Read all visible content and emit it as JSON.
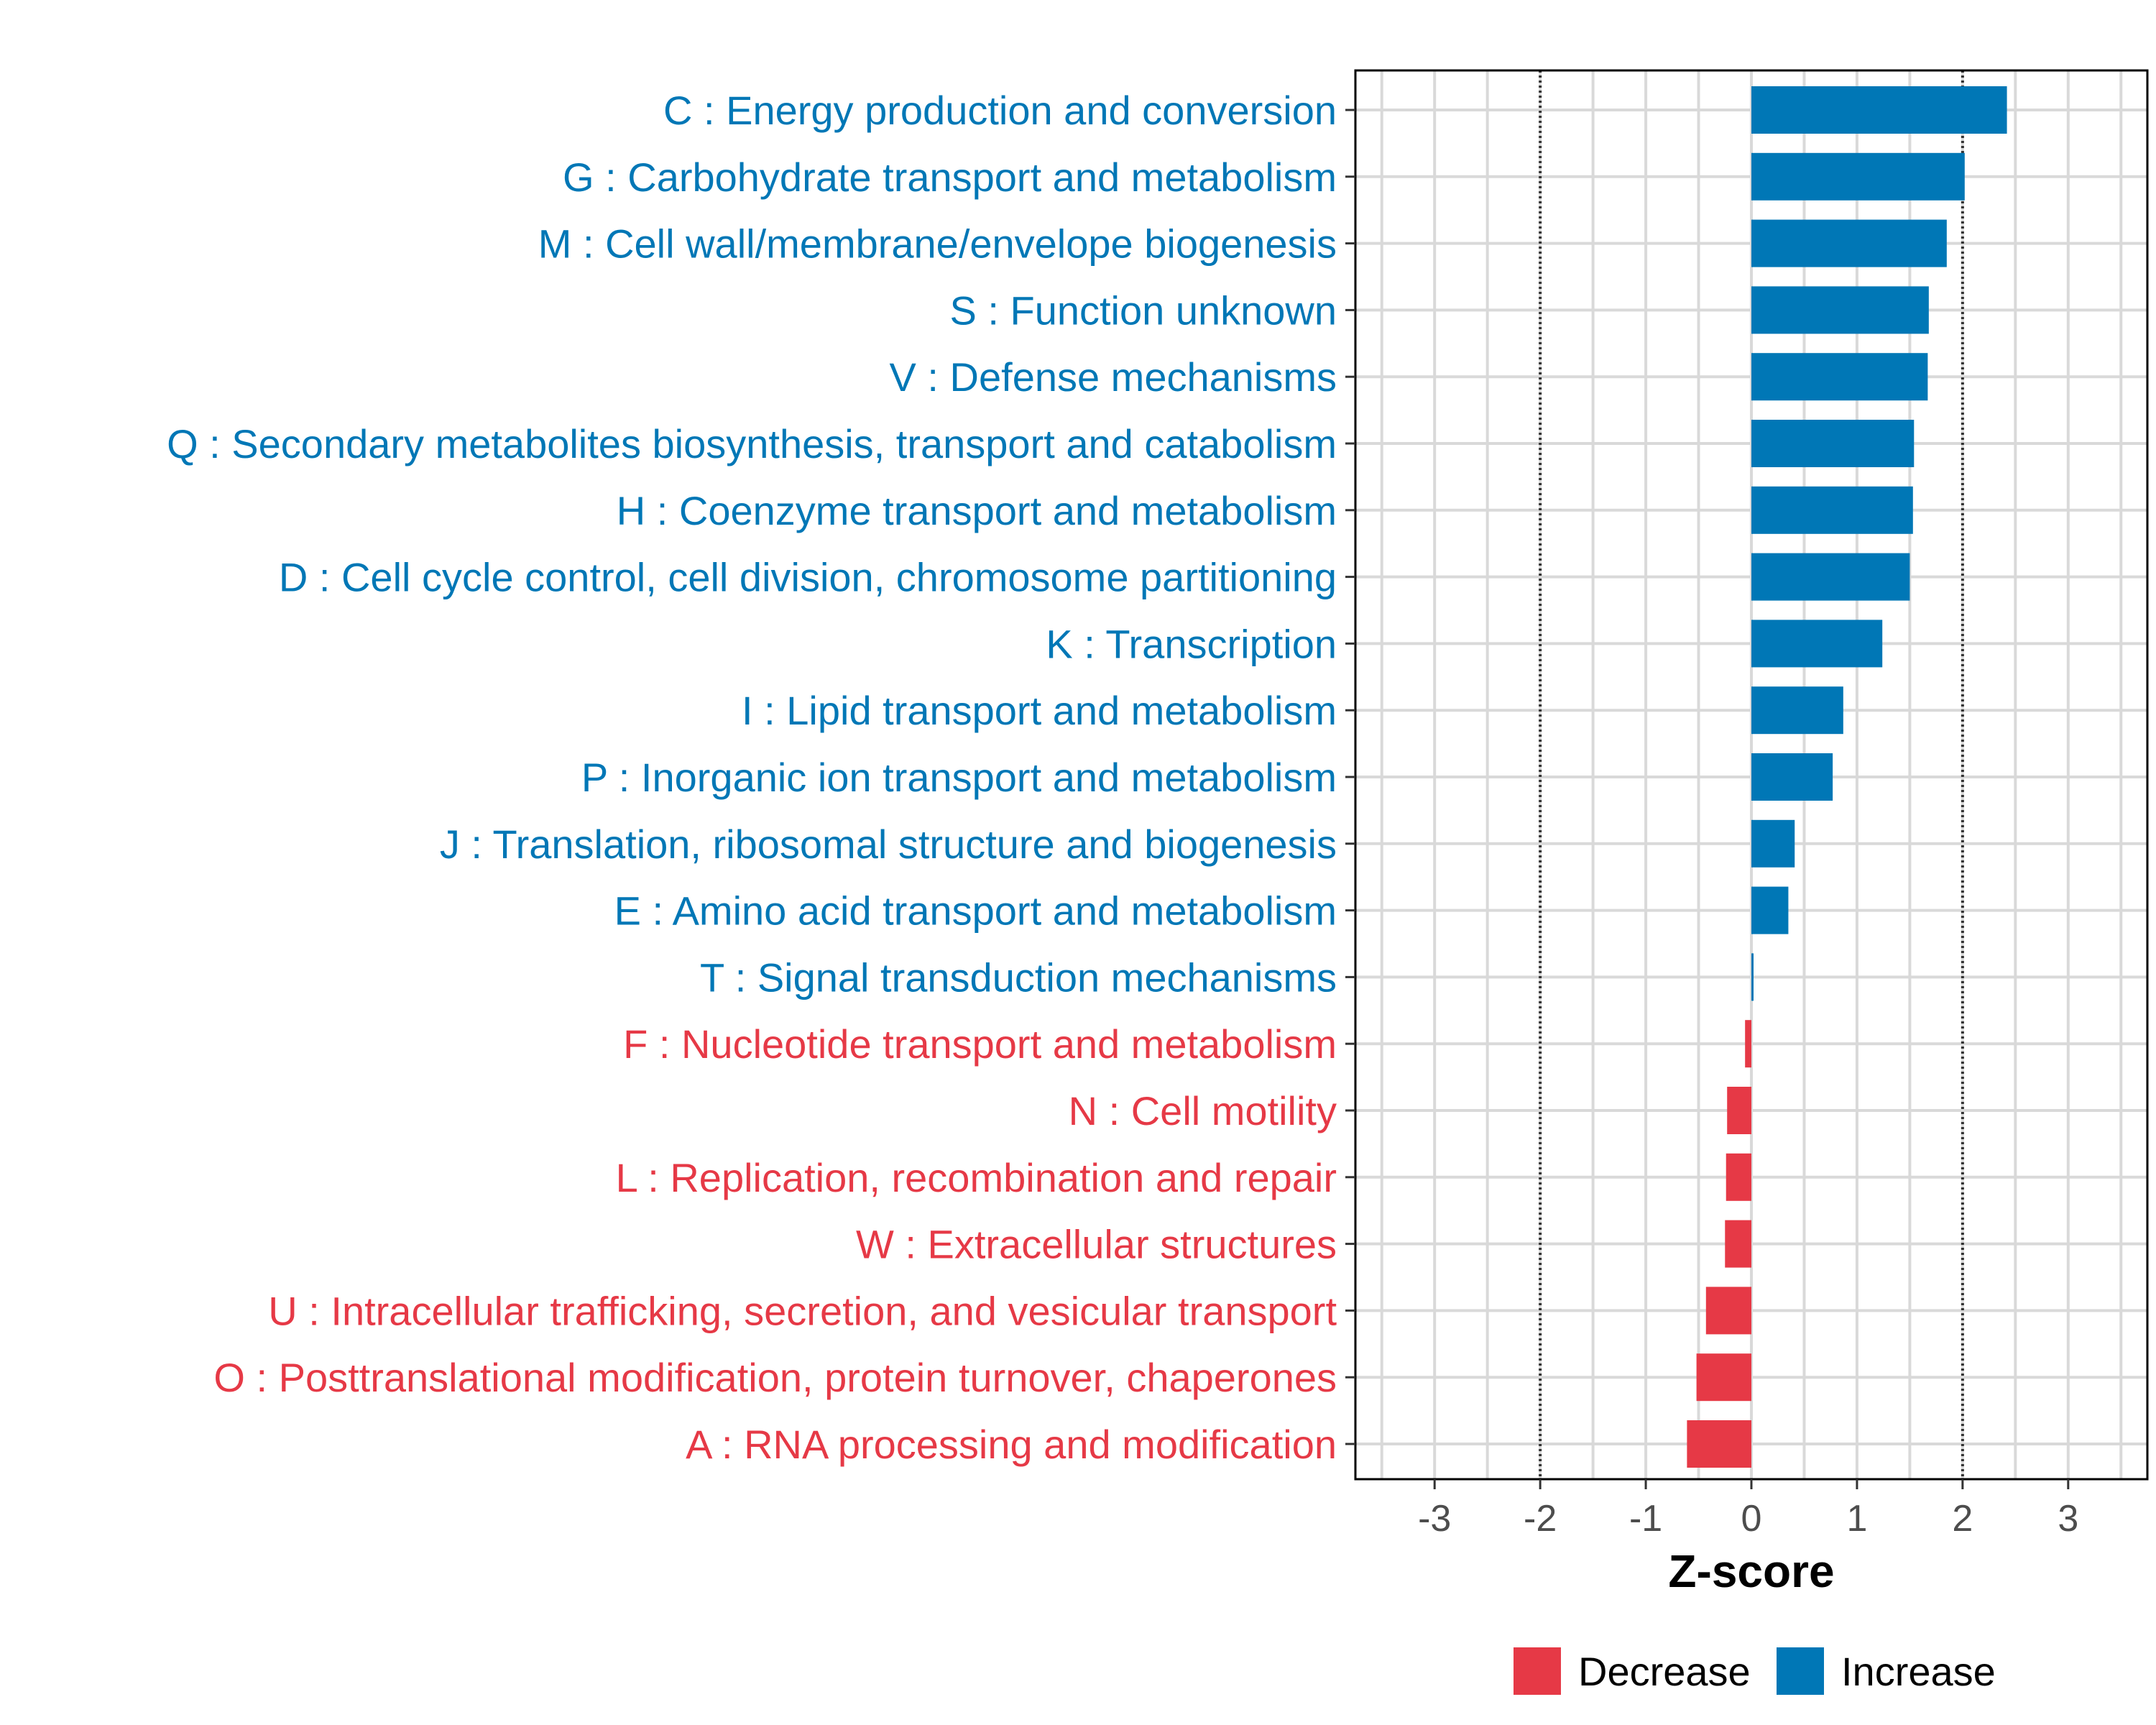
{
  "chart_data": {
    "type": "bar",
    "orientation": "horizontal",
    "title": "",
    "xlabel": "Z-score",
    "ylabel": "",
    "xlim": [
      -3.75,
      3.75
    ],
    "xticks": [
      -3,
      -2,
      -1,
      0,
      1,
      2,
      3
    ],
    "reference_lines": [
      -2,
      2
    ],
    "grid": true,
    "legend_position": "bottom",
    "legend": [
      {
        "name": "Decrease",
        "color": "#E63946"
      },
      {
        "name": "Increase",
        "color": "#0077B6"
      }
    ],
    "categories": [
      "C : Energy production and conversion",
      "G : Carbohydrate transport and metabolism",
      "M : Cell wall/membrane/envelope biogenesis",
      "S : Function unknown",
      "V : Defense mechanisms",
      "Q : Secondary metabolites biosynthesis, transport and catabolism",
      "H : Coenzyme transport and metabolism",
      "D : Cell cycle control, cell division, chromosome partitioning",
      "K : Transcription",
      "I : Lipid transport and metabolism",
      "P : Inorganic ion transport and metabolism",
      "J : Translation, ribosomal structure and biogenesis",
      "E : Amino acid transport and metabolism",
      "T : Signal transduction mechanisms",
      "F : Nucleotide transport and metabolism",
      "N : Cell motility",
      "L : Replication, recombination and repair",
      "W : Extracellular structures",
      "U : Intracellular trafficking, secretion, and vesicular transport",
      "O : Posttranslational modification, protein turnover, chaperones",
      "A : RNA processing and modification"
    ],
    "values": [
      2.42,
      2.02,
      1.85,
      1.68,
      1.67,
      1.54,
      1.53,
      1.5,
      1.24,
      0.87,
      0.77,
      0.41,
      0.35,
      0.02,
      -0.06,
      -0.23,
      -0.24,
      -0.25,
      -0.43,
      -0.52,
      -0.61
    ]
  }
}
